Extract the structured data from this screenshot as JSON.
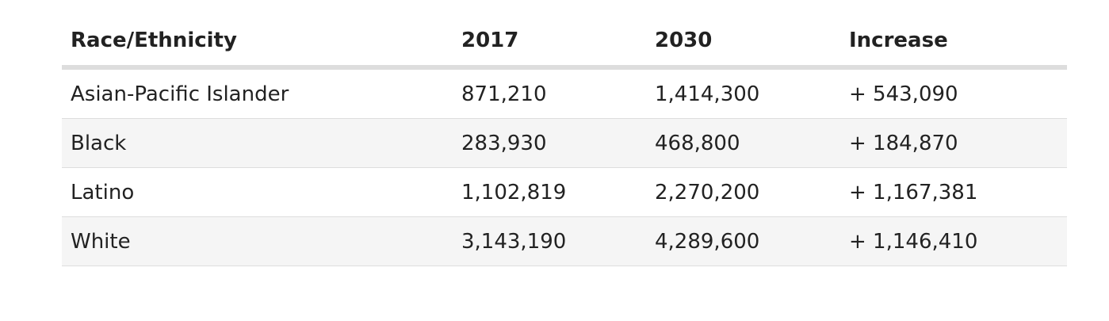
{
  "table": {
    "headers": [
      "Race/Ethnicity",
      "2017",
      "2030",
      "Increase"
    ],
    "rows": [
      [
        "Asian-Pacific Islander",
        "871,210",
        "1,414,300",
        "+ 543,090"
      ],
      [
        "Black",
        "283,930",
        "468,800",
        "+ 184,870"
      ],
      [
        "Latino",
        "1,102,819",
        "2,270,200",
        "+ 1,167,381"
      ],
      [
        "White",
        "3,143,190",
        "4,289,600",
        "+ 1,146,410"
      ]
    ]
  },
  "colors": {
    "header_border": "#dddddd",
    "row_stripe": "#f5f5f5",
    "row_border": "#dddddd",
    "text": "#222222"
  }
}
